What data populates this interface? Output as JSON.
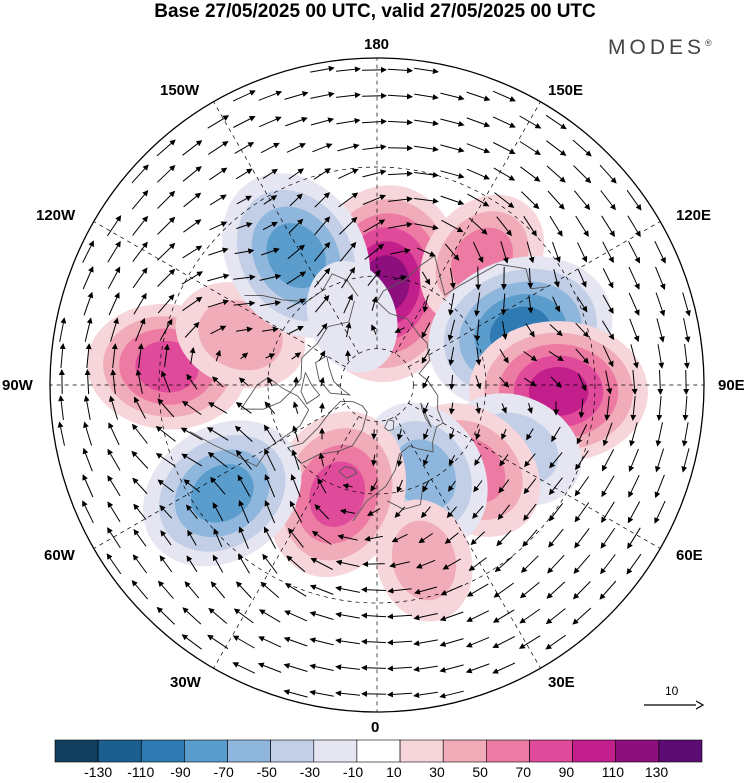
{
  "title": "Base 27/05/2025 00 UTC, valid 27/05/2025 00 UTC",
  "brand": "MODES",
  "brand_mark": "®",
  "longitude_labels": [
    "180",
    "150E",
    "120E",
    "90E",
    "60E",
    "30E",
    "0",
    "30W",
    "60W",
    "90W",
    "120W",
    "150W"
  ],
  "reference_vector_value": "10",
  "colorbar": {
    "tick_labels": [
      "-130",
      "-110",
      "-90",
      "-70",
      "-50",
      "-30",
      "-10",
      "10",
      "30",
      "50",
      "70",
      "90",
      "110",
      "130"
    ],
    "colors": [
      "#123f5e",
      "#1c5f8e",
      "#2f7ab2",
      "#5a9ccb",
      "#8fb6dc",
      "#c3cfe6",
      "#e6e6f2",
      "#ffffff",
      "#f6d6db",
      "#f1acb9",
      "#ec7aa3",
      "#e04a9a",
      "#c21e8c",
      "#8d0f7e",
      "#5d0c73"
    ]
  },
  "anomaly_centers": [
    {
      "lon": 175,
      "lat": 62,
      "value": 110
    },
    {
      "lon": 140,
      "lat": 45,
      "value": 50
    },
    {
      "lon": 110,
      "lat": 48,
      "value": -100
    },
    {
      "lon": 88,
      "lat": 40,
      "value": 90
    },
    {
      "lon": 65,
      "lat": 48,
      "value": -45
    },
    {
      "lon": 48,
      "lat": 55,
      "value": 60
    },
    {
      "lon": 28,
      "lat": 62,
      "value": -60
    },
    {
      "lon": 15,
      "lat": 40,
      "value": 30
    },
    {
      "lon": -20,
      "lat": 58,
      "value": 80
    },
    {
      "lon": -55,
      "lat": 38,
      "value": -80
    },
    {
      "lon": -95,
      "lat": 32,
      "value": 70
    },
    {
      "lon": -110,
      "lat": 50,
      "value": 40
    },
    {
      "lon": -148,
      "lat": 48,
      "value": -85
    },
    {
      "lon": -160,
      "lat": 70,
      "value": -20
    }
  ],
  "colors": {
    "coast": "#555555",
    "grid": "#000000",
    "vector": "#000000"
  }
}
